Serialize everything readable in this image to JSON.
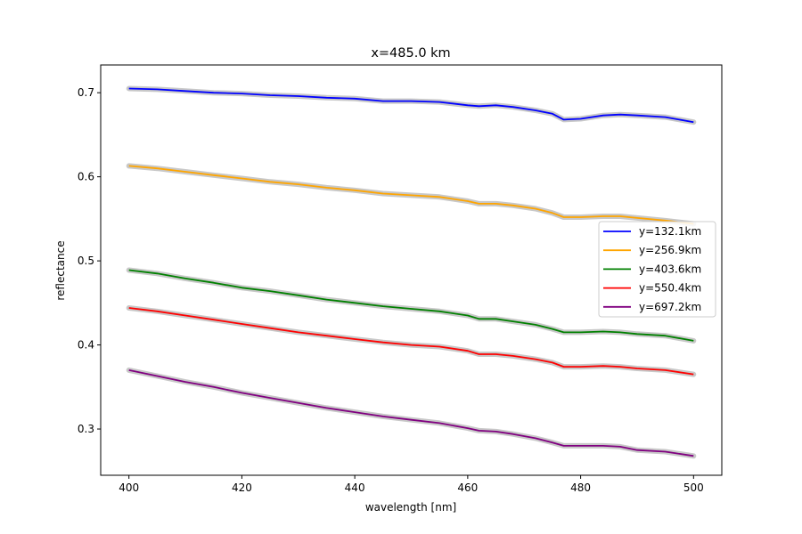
{
  "chart_data": {
    "type": "line",
    "title": "x=485.0 km",
    "xlabel": "wavelength [nm]",
    "ylabel": "reflectance",
    "xlim": [
      395,
      505
    ],
    "ylim": [
      0.245,
      0.733
    ],
    "xticks": [
      400,
      420,
      440,
      460,
      480,
      500
    ],
    "xtick_labels": [
      "400",
      "420",
      "440",
      "460",
      "480",
      "500"
    ],
    "yticks": [
      0.3,
      0.4,
      0.5,
      0.6,
      0.7
    ],
    "ytick_labels": [
      "0.3",
      "0.4",
      "0.5",
      "0.6",
      "0.7"
    ],
    "grid": false,
    "legend_position": "right",
    "uncertainty_band_color": "#c8c8c8",
    "x": [
      400,
      405,
      410,
      415,
      420,
      425,
      430,
      435,
      440,
      445,
      450,
      455,
      460,
      462,
      465,
      468,
      472,
      475,
      477,
      480,
      484,
      487,
      490,
      495,
      500
    ],
    "series": [
      {
        "name": "y=132.1km",
        "color": "#0000ff",
        "values": [
          0.705,
          0.704,
          0.702,
          0.7,
          0.699,
          0.697,
          0.696,
          0.694,
          0.693,
          0.69,
          0.69,
          0.689,
          0.685,
          0.684,
          0.685,
          0.683,
          0.679,
          0.675,
          0.668,
          0.669,
          0.673,
          0.674,
          0.673,
          0.671,
          0.665
        ]
      },
      {
        "name": "y=256.9km",
        "color": "#ffa500",
        "values": [
          0.613,
          0.61,
          0.606,
          0.602,
          0.598,
          0.594,
          0.591,
          0.587,
          0.584,
          0.58,
          0.578,
          0.576,
          0.571,
          0.568,
          0.568,
          0.566,
          0.562,
          0.557,
          0.552,
          0.552,
          0.553,
          0.553,
          0.551,
          0.548,
          0.544
        ]
      },
      {
        "name": "y=403.6km",
        "color": "#008000",
        "values": [
          0.489,
          0.485,
          0.479,
          0.474,
          0.468,
          0.464,
          0.459,
          0.454,
          0.45,
          0.446,
          0.443,
          0.44,
          0.435,
          0.431,
          0.431,
          0.428,
          0.424,
          0.419,
          0.415,
          0.415,
          0.416,
          0.415,
          0.413,
          0.411,
          0.405
        ]
      },
      {
        "name": "y=550.4km",
        "color": "#ff0000",
        "values": [
          0.444,
          0.44,
          0.435,
          0.43,
          0.425,
          0.42,
          0.415,
          0.411,
          0.407,
          0.403,
          0.4,
          0.398,
          0.393,
          0.389,
          0.389,
          0.387,
          0.383,
          0.379,
          0.374,
          0.374,
          0.375,
          0.374,
          0.372,
          0.37,
          0.365
        ]
      },
      {
        "name": "y=697.2km",
        "color": "#800080",
        "values": [
          0.37,
          0.363,
          0.356,
          0.35,
          0.343,
          0.337,
          0.331,
          0.325,
          0.32,
          0.315,
          0.311,
          0.307,
          0.301,
          0.298,
          0.297,
          0.294,
          0.289,
          0.284,
          0.28,
          0.28,
          0.28,
          0.279,
          0.275,
          0.273,
          0.268
        ]
      }
    ]
  }
}
